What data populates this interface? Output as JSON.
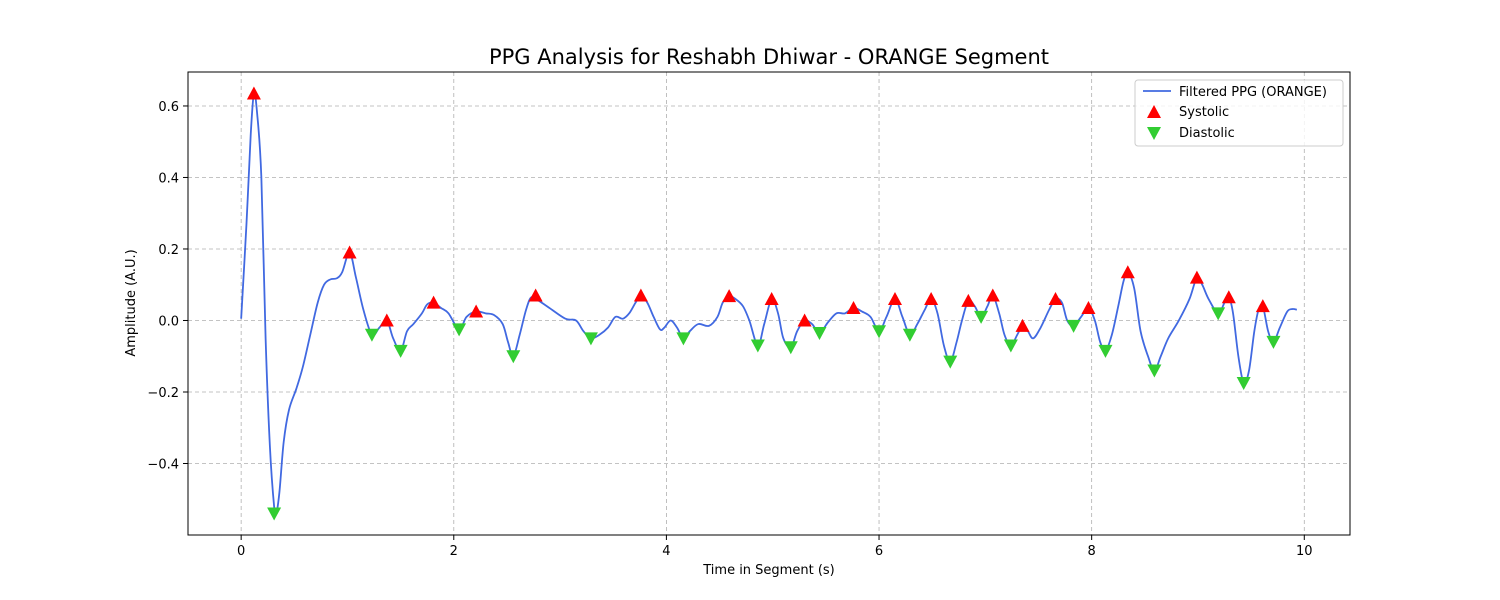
{
  "chart_data": {
    "type": "line",
    "title": "PPG Analysis for Reshabh Dhiwar - ORANGE Segment",
    "xlabel": "Time in Segment (s)",
    "ylabel": "Amplitude (A.U.)",
    "xlim": [
      -0.5,
      10.43
    ],
    "ylim": [
      -0.6,
      0.695
    ],
    "xticks": [
      0,
      2,
      4,
      6,
      8,
      10
    ],
    "xtick_labels": [
      "0",
      "2",
      "4",
      "6",
      "8",
      "10"
    ],
    "yticks": [
      -0.4,
      -0.2,
      0.0,
      0.2,
      0.4,
      0.6
    ],
    "ytick_labels": [
      "−0.4",
      "−0.2",
      "0.0",
      "0.2",
      "0.4",
      "0.6"
    ],
    "grid": true,
    "legend_position": "top-right",
    "colors": {
      "line": "#4169e1",
      "systolic": "#ff0000",
      "diastolic": "#32cd32"
    },
    "series": [
      {
        "name": "Filtered PPG (ORANGE)",
        "kind": "line",
        "points": [
          [
            0.0,
            0.005
          ],
          [
            0.05,
            0.27
          ],
          [
            0.09,
            0.52
          ],
          [
            0.12,
            0.635
          ],
          [
            0.15,
            0.58
          ],
          [
            0.19,
            0.4
          ],
          [
            0.23,
            -0.05
          ],
          [
            0.27,
            -0.35
          ],
          [
            0.31,
            -0.52
          ],
          [
            0.33,
            -0.54
          ],
          [
            0.36,
            -0.48
          ],
          [
            0.4,
            -0.34
          ],
          [
            0.45,
            -0.25
          ],
          [
            0.52,
            -0.19
          ],
          [
            0.58,
            -0.13
          ],
          [
            0.65,
            -0.04
          ],
          [
            0.72,
            0.05
          ],
          [
            0.78,
            0.1
          ],
          [
            0.84,
            0.115
          ],
          [
            0.9,
            0.118
          ],
          [
            0.95,
            0.135
          ],
          [
            1.02,
            0.19
          ],
          [
            1.08,
            0.12
          ],
          [
            1.15,
            0.03
          ],
          [
            1.23,
            -0.04
          ],
          [
            1.3,
            -0.02
          ],
          [
            1.37,
            0.0
          ],
          [
            1.43,
            -0.05
          ],
          [
            1.5,
            -0.085
          ],
          [
            1.56,
            -0.03
          ],
          [
            1.62,
            -0.01
          ],
          [
            1.7,
            0.02
          ],
          [
            1.75,
            0.045
          ],
          [
            1.81,
            0.05
          ],
          [
            1.88,
            0.035
          ],
          [
            1.95,
            0.02
          ],
          [
            2.05,
            -0.025
          ],
          [
            2.12,
            0.01
          ],
          [
            2.21,
            0.025
          ],
          [
            2.3,
            0.02
          ],
          [
            2.38,
            0.015
          ],
          [
            2.46,
            -0.01
          ],
          [
            2.51,
            -0.06
          ],
          [
            2.56,
            -0.1
          ],
          [
            2.62,
            -0.04
          ],
          [
            2.68,
            0.03
          ],
          [
            2.73,
            0.065
          ],
          [
            2.8,
            0.055
          ],
          [
            2.9,
            0.035
          ],
          [
            3.05,
            0.005
          ],
          [
            3.15,
            0.0
          ],
          [
            3.22,
            -0.03
          ],
          [
            3.29,
            -0.05
          ],
          [
            3.37,
            -0.04
          ],
          [
            3.45,
            -0.02
          ],
          [
            3.52,
            0.01
          ],
          [
            3.59,
            0.005
          ],
          [
            3.65,
            0.02
          ],
          [
            3.71,
            0.05
          ],
          [
            3.76,
            0.07
          ],
          [
            3.82,
            0.05
          ],
          [
            3.88,
            0.01
          ],
          [
            3.94,
            -0.025
          ],
          [
            3.98,
            -0.02
          ],
          [
            4.04,
            0.0
          ],
          [
            4.1,
            -0.02
          ],
          [
            4.16,
            -0.05
          ],
          [
            4.22,
            -0.03
          ],
          [
            4.3,
            -0.01
          ],
          [
            4.4,
            -0.015
          ],
          [
            4.48,
            0.01
          ],
          [
            4.53,
            0.05
          ],
          [
            4.59,
            0.068
          ],
          [
            4.65,
            0.06
          ],
          [
            4.72,
            0.04
          ],
          [
            4.78,
            0.0
          ],
          [
            4.86,
            -0.07
          ],
          [
            4.92,
            -0.01
          ],
          [
            4.99,
            0.06
          ],
          [
            5.05,
            0.02
          ],
          [
            5.1,
            -0.05
          ],
          [
            5.17,
            -0.075
          ],
          [
            5.23,
            -0.03
          ],
          [
            5.3,
            0.0
          ],
          [
            5.37,
            -0.01
          ],
          [
            5.44,
            -0.035
          ],
          [
            5.52,
            -0.005
          ],
          [
            5.6,
            0.02
          ],
          [
            5.68,
            0.02
          ],
          [
            5.76,
            0.035
          ],
          [
            5.84,
            0.025
          ],
          [
            5.92,
            0.01
          ],
          [
            6.0,
            -0.03
          ],
          [
            6.07,
            0.01
          ],
          [
            6.15,
            0.06
          ],
          [
            6.22,
            0.01
          ],
          [
            6.29,
            -0.04
          ],
          [
            6.36,
            -0.01
          ],
          [
            6.43,
            0.03
          ],
          [
            6.49,
            0.06
          ],
          [
            6.55,
            0.02
          ],
          [
            6.61,
            -0.07
          ],
          [
            6.67,
            -0.115
          ],
          [
            6.73,
            -0.06
          ],
          [
            6.78,
            0.0
          ],
          [
            6.84,
            0.055
          ],
          [
            6.9,
            0.04
          ],
          [
            6.96,
            0.01
          ],
          [
            7.02,
            0.04
          ],
          [
            7.07,
            0.07
          ],
          [
            7.13,
            0.02
          ],
          [
            7.18,
            -0.04
          ],
          [
            7.24,
            -0.07
          ],
          [
            7.3,
            -0.04
          ],
          [
            7.35,
            -0.015
          ],
          [
            7.4,
            -0.03
          ],
          [
            7.45,
            -0.05
          ],
          [
            7.52,
            -0.02
          ],
          [
            7.6,
            0.03
          ],
          [
            7.66,
            0.06
          ],
          [
            7.72,
            0.05
          ],
          [
            7.77,
            0.0
          ],
          [
            7.83,
            -0.015
          ],
          [
            7.9,
            0.01
          ],
          [
            7.97,
            0.035
          ],
          [
            8.03,
            0.0
          ],
          [
            8.08,
            -0.06
          ],
          [
            8.13,
            -0.085
          ],
          [
            8.19,
            -0.04
          ],
          [
            8.25,
            0.04
          ],
          [
            8.3,
            0.11
          ],
          [
            8.34,
            0.135
          ],
          [
            8.4,
            0.09
          ],
          [
            8.46,
            -0.03
          ],
          [
            8.53,
            -0.1
          ],
          [
            8.59,
            -0.14
          ],
          [
            8.65,
            -0.1
          ],
          [
            8.72,
            -0.05
          ],
          [
            8.82,
            0.0
          ],
          [
            8.92,
            0.06
          ],
          [
            8.99,
            0.12
          ],
          [
            9.04,
            0.1
          ],
          [
            9.1,
            0.06
          ],
          [
            9.19,
            0.02
          ],
          [
            9.25,
            0.05
          ],
          [
            9.29,
            0.065
          ],
          [
            9.33,
            0.02
          ],
          [
            9.38,
            -0.1
          ],
          [
            9.43,
            -0.175
          ],
          [
            9.48,
            -0.14
          ],
          [
            9.53,
            -0.03
          ],
          [
            9.57,
            0.03
          ],
          [
            9.61,
            0.04
          ],
          [
            9.66,
            -0.03
          ],
          [
            9.71,
            -0.06
          ],
          [
            9.77,
            -0.02
          ],
          [
            9.84,
            0.025
          ],
          [
            9.89,
            0.032
          ],
          [
            9.93,
            0.03
          ]
        ]
      },
      {
        "name": "Systolic",
        "kind": "marker-up",
        "points": [
          [
            0.12,
            0.635
          ],
          [
            1.02,
            0.19
          ],
          [
            1.37,
            0.0
          ],
          [
            1.81,
            0.05
          ],
          [
            2.21,
            0.025
          ],
          [
            2.77,
            0.07
          ],
          [
            3.76,
            0.07
          ],
          [
            4.59,
            0.068
          ],
          [
            4.99,
            0.06
          ],
          [
            5.3,
            0.0
          ],
          [
            5.76,
            0.035
          ],
          [
            6.15,
            0.06
          ],
          [
            6.49,
            0.06
          ],
          [
            6.84,
            0.055
          ],
          [
            7.07,
            0.07
          ],
          [
            7.35,
            -0.015
          ],
          [
            7.66,
            0.06
          ],
          [
            7.97,
            0.035
          ],
          [
            8.34,
            0.135
          ],
          [
            8.99,
            0.12
          ],
          [
            9.29,
            0.065
          ],
          [
            9.61,
            0.04
          ]
        ]
      },
      {
        "name": "Diastolic",
        "kind": "marker-down",
        "points": [
          [
            0.31,
            -0.54
          ],
          [
            1.23,
            -0.04
          ],
          [
            1.5,
            -0.085
          ],
          [
            2.05,
            -0.025
          ],
          [
            2.56,
            -0.1
          ],
          [
            3.29,
            -0.05
          ],
          [
            4.16,
            -0.05
          ],
          [
            4.86,
            -0.07
          ],
          [
            5.17,
            -0.075
          ],
          [
            5.44,
            -0.035
          ],
          [
            6.0,
            -0.03
          ],
          [
            6.29,
            -0.04
          ],
          [
            6.67,
            -0.115
          ],
          [
            6.96,
            0.01
          ],
          [
            7.24,
            -0.07
          ],
          [
            7.83,
            -0.015
          ],
          [
            8.13,
            -0.085
          ],
          [
            8.59,
            -0.14
          ],
          [
            9.19,
            0.02
          ],
          [
            9.43,
            -0.175
          ],
          [
            9.71,
            -0.06
          ]
        ]
      }
    ]
  }
}
